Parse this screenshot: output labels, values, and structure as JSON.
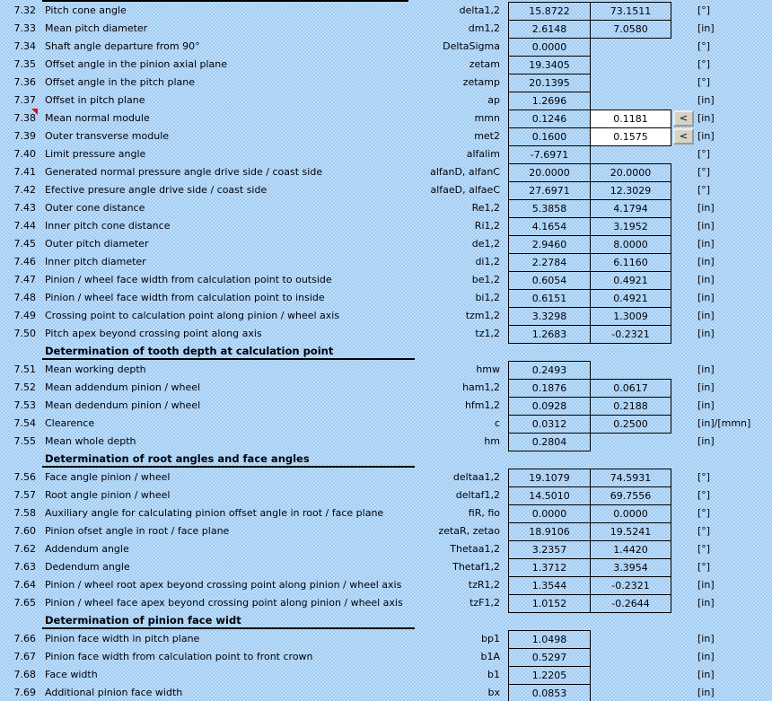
{
  "sheet": {
    "bg_color": "#A0CCF4",
    "dot_color": "#C9E3FA",
    "border_color": "#000000",
    "input_bg_color": "#FFFFFF",
    "button_face_color": "#D6D2C6",
    "comment_marker_color": "#E01010",
    "arrow_button_label": "<"
  },
  "rows": [
    {
      "kind": "data",
      "num": "7.32",
      "desc": "Pitch cone angle",
      "sym": "delta1,2",
      "v1": "15.8722",
      "v2": "73.1511",
      "unit": "[°]"
    },
    {
      "kind": "data",
      "num": "7.33",
      "desc": "Mean pitch diameter",
      "sym": "dm1,2",
      "v1": "2.6148",
      "v2": "7.0580",
      "unit": "[in]"
    },
    {
      "kind": "data",
      "num": "7.34",
      "desc": "Shaft angle departure from 90°",
      "sym": "DeltaSigma",
      "v1": "0.0000",
      "v2": "",
      "unit": "[°]"
    },
    {
      "kind": "data",
      "num": "7.35",
      "desc": "Offset angle in the pinion axial plane",
      "sym": "zetam",
      "v1": "19.3405",
      "v2": "",
      "unit": "[°]"
    },
    {
      "kind": "data",
      "num": "7.36",
      "desc": "Offset angle in the pitch plane",
      "sym": "zetamp",
      "v1": "20.1395",
      "v2": "",
      "unit": "[°]"
    },
    {
      "kind": "data",
      "num": "7.37",
      "desc": "Offset in pitch plane",
      "sym": "ap",
      "v1": "1.2696",
      "v2": "",
      "unit": "[in]"
    },
    {
      "kind": "data",
      "num": "7.38",
      "desc": "Mean normal module",
      "sym": "mmn",
      "v1": "0.1246",
      "v2": "0.1181",
      "unit": "[in]",
      "v2_input": true,
      "arrow": true,
      "note": true
    },
    {
      "kind": "data",
      "num": "7.39",
      "desc": "Outer transverse module",
      "sym": "met2",
      "v1": "0.1600",
      "v2": "0.1575",
      "unit": "[in]",
      "v2_input": true,
      "arrow": true
    },
    {
      "kind": "data",
      "num": "7.40",
      "desc": "Limit pressure angle",
      "sym": "alfalim",
      "v1": "-7.6971",
      "v2": "",
      "unit": "[°]"
    },
    {
      "kind": "data",
      "num": "7.41",
      "desc": "Generated normal pressure angle drive side / coast side",
      "sym": "alfanD, alfanC",
      "v1": "20.0000",
      "v2": "20.0000",
      "unit": "[°]"
    },
    {
      "kind": "data",
      "num": "7.42",
      "desc": "Efective presure angle drive side / coast side",
      "sym": "alfaeD, alfaeC",
      "v1": "27.6971",
      "v2": "12.3029",
      "unit": "[°]"
    },
    {
      "kind": "data",
      "num": "7.43",
      "desc": "Outer cone distance",
      "sym": "Re1,2",
      "v1": "5.3858",
      "v2": "4.1794",
      "unit": "[in]"
    },
    {
      "kind": "data",
      "num": "7.44",
      "desc": "Inner pitch cone distance",
      "sym": "Ri1,2",
      "v1": "4.1654",
      "v2": "3.1952",
      "unit": "[in]"
    },
    {
      "kind": "data",
      "num": "7.45",
      "desc": "Outer pitch diameter",
      "sym": "de1,2",
      "v1": "2.9460",
      "v2": "8.0000",
      "unit": "[in]"
    },
    {
      "kind": "data",
      "num": "7.46",
      "desc": "Inner pitch diameter",
      "sym": "di1,2",
      "v1": "2.2784",
      "v2": "6.1160",
      "unit": "[in]"
    },
    {
      "kind": "data",
      "num": "7.47",
      "desc": "Pinion / wheel face width from calculation point to outside",
      "sym": "be1,2",
      "v1": "0.6054",
      "v2": "0.4921",
      "unit": "[in]"
    },
    {
      "kind": "data",
      "num": "7.48",
      "desc": "Pinion / wheel face width from calculation point to inside",
      "sym": "bi1,2",
      "v1": "0.6151",
      "v2": "0.4921",
      "unit": "[in]"
    },
    {
      "kind": "data",
      "num": "7.49",
      "desc": "Crossing point to calculation point along pinion / wheel axis",
      "sym": "tzm1,2",
      "v1": "3.3298",
      "v2": "1.3009",
      "unit": "[in]"
    },
    {
      "kind": "data",
      "num": "7.50",
      "desc": "Pitch apex beyond crossing point along axis",
      "sym": "tz1,2",
      "v1": "1.2683",
      "v2": "-0.2321",
      "unit": "[in]"
    },
    {
      "kind": "section",
      "title": "Determination of tooth depth at calculation point"
    },
    {
      "kind": "data",
      "num": "7.51",
      "desc": "Mean working depth",
      "sym": "hmw",
      "v1": "0.2493",
      "v2": "",
      "unit": "[in]"
    },
    {
      "kind": "data",
      "num": "7.52",
      "desc": "Mean addendum pinion / wheel",
      "sym": "ham1,2",
      "v1": "0.1876",
      "v2": "0.0617",
      "unit": "[in]"
    },
    {
      "kind": "data",
      "num": "7.53",
      "desc": "Mean dedendum pinion / wheel",
      "sym": "hfm1,2",
      "v1": "0.0928",
      "v2": "0.2188",
      "unit": "[in]"
    },
    {
      "kind": "data",
      "num": "7.54",
      "desc": "Clearence",
      "sym": "c",
      "v1": "0.0312",
      "v2": "0.2500",
      "unit": "[in]/[mmn]"
    },
    {
      "kind": "data",
      "num": "7.55",
      "desc": "Mean whole depth",
      "sym": "hm",
      "v1": "0.2804",
      "v2": "",
      "unit": "[in]"
    },
    {
      "kind": "section",
      "title": "Determination of root angles and face angles"
    },
    {
      "kind": "data",
      "num": "7.56",
      "desc": "Face angle pinion / wheel",
      "sym": "deltaa1,2",
      "v1": "19.1079",
      "v2": "74.5931",
      "unit": "[°]"
    },
    {
      "kind": "data",
      "num": "7.57",
      "desc": "Root angle pinion / wheel",
      "sym": "deltaf1,2",
      "v1": "14.5010",
      "v2": "69.7556",
      "unit": "[°]"
    },
    {
      "kind": "data",
      "num": "7.58",
      "desc": "Auxiliary angle for calculating pinion offset angle in root / face plane",
      "sym": "fiR, fio",
      "v1": "0.0000",
      "v2": "0.0000",
      "unit": "[°]"
    },
    {
      "kind": "data",
      "num": "7.60",
      "desc": "Pinion ofset angle in root / face plane",
      "sym": "zetaR, zetao",
      "v1": "18.9106",
      "v2": "19.5241",
      "unit": "[°]"
    },
    {
      "kind": "data",
      "num": "7.62",
      "desc": "Addendum angle",
      "sym": "Thetaa1,2",
      "v1": "3.2357",
      "v2": "1.4420",
      "unit": "[°]"
    },
    {
      "kind": "data",
      "num": "7.63",
      "desc": "Dedendum angle",
      "sym": "Thetaf1,2",
      "v1": "1.3712",
      "v2": "3.3954",
      "unit": "[°]"
    },
    {
      "kind": "data",
      "num": "7.64",
      "desc": "Pinion / wheel root apex beyond crossing point along pinion / wheel axis",
      "sym": "tzR1,2",
      "v1": "1.3544",
      "v2": "-0.2321",
      "unit": "[in]"
    },
    {
      "kind": "data",
      "num": "7.65",
      "desc": "Pinion / wheel face apex beyond crossing point along pinion / wheel axis",
      "sym": "tzF1,2",
      "v1": "1.0152",
      "v2": "-0.2644",
      "unit": "[in]"
    },
    {
      "kind": "section",
      "title": "Determination of pinion face widt"
    },
    {
      "kind": "data",
      "num": "7.66",
      "desc": "Pinion face width in pitch plane",
      "sym": "bp1",
      "v1": "1.0498",
      "v2": "",
      "unit": "[in]"
    },
    {
      "kind": "data",
      "num": "7.67",
      "desc": "Pinion face width from calculation point to front crown",
      "sym": "b1A",
      "v1": "0.5297",
      "v2": "",
      "unit": "[in]"
    },
    {
      "kind": "data",
      "num": "7.68",
      "desc": "Face width",
      "sym": "b1",
      "v1": "1.2205",
      "v2": "",
      "unit": "[in]"
    },
    {
      "kind": "data",
      "num": "7.69",
      "desc": "Additional pinion face width",
      "sym": "bx",
      "v1": "0.0853",
      "v2": "",
      "unit": "[in]"
    }
  ]
}
